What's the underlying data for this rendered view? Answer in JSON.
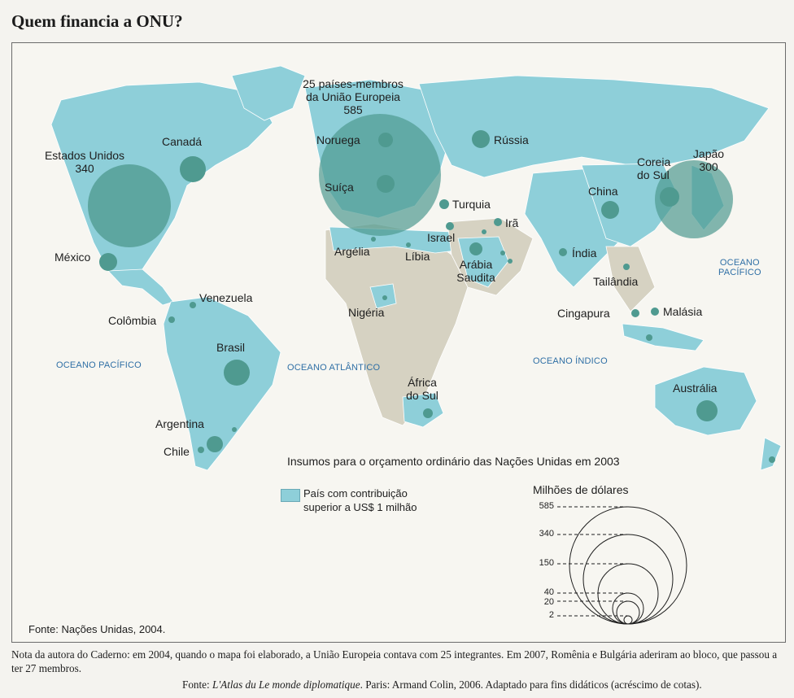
{
  "title": "Quem financia a ONU?",
  "map": {
    "source": "Fonte: Nações Unidas, 2004.",
    "countries": [
      {
        "key": "eu",
        "label": "25 países-membros\nda União Europeia",
        "value": "585"
      },
      {
        "key": "usa",
        "label": "Estados Unidos",
        "value": "340"
      },
      {
        "key": "japan",
        "label": "Japão",
        "value": "300"
      },
      {
        "key": "canada",
        "label": "Canadá"
      },
      {
        "key": "norway",
        "label": "Noruega"
      },
      {
        "key": "switzerland",
        "label": "Suíça"
      },
      {
        "key": "russia",
        "label": "Rússia"
      },
      {
        "key": "korea",
        "label": "Coreia\ndo Sul"
      },
      {
        "key": "china",
        "label": "China"
      },
      {
        "key": "turkey",
        "label": "Turquia"
      },
      {
        "key": "iran",
        "label": "Irã"
      },
      {
        "key": "israel",
        "label": "Israel"
      },
      {
        "key": "algeria",
        "label": "Argélia"
      },
      {
        "key": "libya",
        "label": "Líbia"
      },
      {
        "key": "saudi",
        "label": "Arábia\nSaudita"
      },
      {
        "key": "india",
        "label": "Índia"
      },
      {
        "key": "mexico",
        "label": "México"
      },
      {
        "key": "thailand",
        "label": "Tailândia"
      },
      {
        "key": "venezuela",
        "label": "Venezuela"
      },
      {
        "key": "colombia",
        "label": "Colômbia"
      },
      {
        "key": "nigeria",
        "label": "Nigéria"
      },
      {
        "key": "singapore",
        "label": "Cingapura"
      },
      {
        "key": "malaysia",
        "label": "Malásia"
      },
      {
        "key": "brazil",
        "label": "Brasil"
      },
      {
        "key": "south_africa",
        "label": "África\ndo Sul"
      },
      {
        "key": "australia",
        "label": "Austrália"
      },
      {
        "key": "argentina",
        "label": "Argentina"
      },
      {
        "key": "chile",
        "label": "Chile"
      }
    ],
    "oceans": [
      {
        "key": "pacific_east",
        "label": "OCEANO\nPACÍFICO"
      },
      {
        "key": "pacific_west",
        "label": "OCEANO PACÍFICO"
      },
      {
        "key": "atlantic",
        "label": "OCEANO ATLÂNTICO"
      },
      {
        "key": "indian",
        "label": "OCEANO ÍNDICO"
      }
    ]
  },
  "legend": {
    "title": "Insumos para o orçamento ordinário das Nações Unidas em 2003",
    "swatch_text": "País com contribuição\nsuperior a US$ 1 milhão",
    "swatch_color": "#8ecfd9",
    "scale_title": "Milhões de dólares",
    "scale_values": [
      585,
      340,
      150,
      40,
      20,
      2
    ]
  },
  "colors": {
    "land_contributor": "#8ecfd9",
    "land_other": "#d6d2c2",
    "circle": "#4f9a90"
  },
  "note": "Nota da autora do Caderno: em 2004, quando o mapa foi elaborado, a União Europeia contava com 25 integrantes. Em 2007, Romênia e Bulgária aderiram ao bloco, que passou a ter 27 membros.",
  "credit": {
    "prefix": "Fonte: ",
    "work": "L'Atlas du Le monde diplomatique",
    "rest": ". Paris: Armand Colin, 2006. Adaptado para fins didáticos (acréscimo de cotas)."
  }
}
